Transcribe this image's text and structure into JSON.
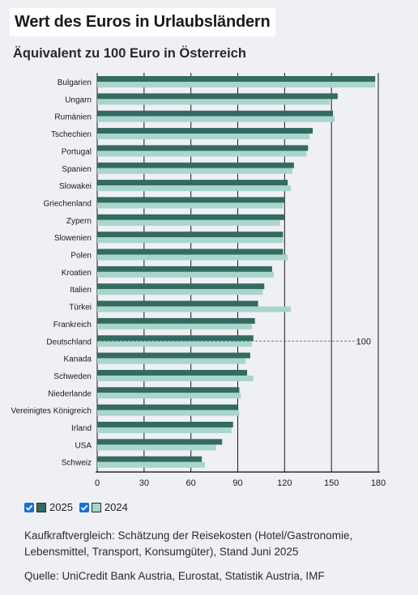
{
  "title": "Wert des Euros in Urlaubsländern",
  "subtitle": "Äquivalent zu 100 Euro in Österreich",
  "legend": {
    "s2025": "2025",
    "s2024": "2024"
  },
  "note": "Kaufkraftvergleich: Schätzung der Reisekosten (Hotel/Gastronomie, Lebensmittel, Transport, Konsumgüter), Stand Juni 2025",
  "source": "Quelle: UniCredit Bank Austria, Eurostat, Statistik Austria, IMF",
  "colors": {
    "s2025": "#336b63",
    "s2024": "#a8d5cc",
    "checkbox": "#1670d8"
  },
  "chart_data": {
    "type": "bar",
    "orientation": "horizontal",
    "categories": [
      "Bulgarien",
      "Ungarn",
      "Rumänien",
      "Tschechien",
      "Portugal",
      "Spanien",
      "Slowakei",
      "Griechenland",
      "Zypern",
      "Slowenien",
      "Polen",
      "Kroatien",
      "Italien",
      "Türkei",
      "Frankreich",
      "Deutschland",
      "Kanada",
      "Schweden",
      "Niederlande",
      "Vereinigtes Königreich",
      "Irland",
      "USA",
      "Schweiz"
    ],
    "series": [
      {
        "name": "2025",
        "values": [
          178,
          154,
          151,
          138,
          135,
          126,
          122,
          120,
          120,
          119,
          119,
          112,
          107,
          103,
          101,
          100,
          98,
          96,
          91,
          90,
          87,
          80,
          67
        ]
      },
      {
        "name": "2024",
        "values": [
          178,
          149,
          152,
          136,
          134,
          125,
          124,
          119,
          117,
          119,
          122,
          113,
          106,
          124,
          99,
          99,
          95,
          100,
          92,
          91,
          86,
          76,
          69
        ]
      }
    ],
    "xlim": [
      0,
      180
    ],
    "xticks": [
      0,
      30,
      60,
      90,
      120,
      150,
      180
    ],
    "reference": {
      "value": 100,
      "label": "100"
    },
    "grid": true,
    "legend": "bottom-left"
  }
}
